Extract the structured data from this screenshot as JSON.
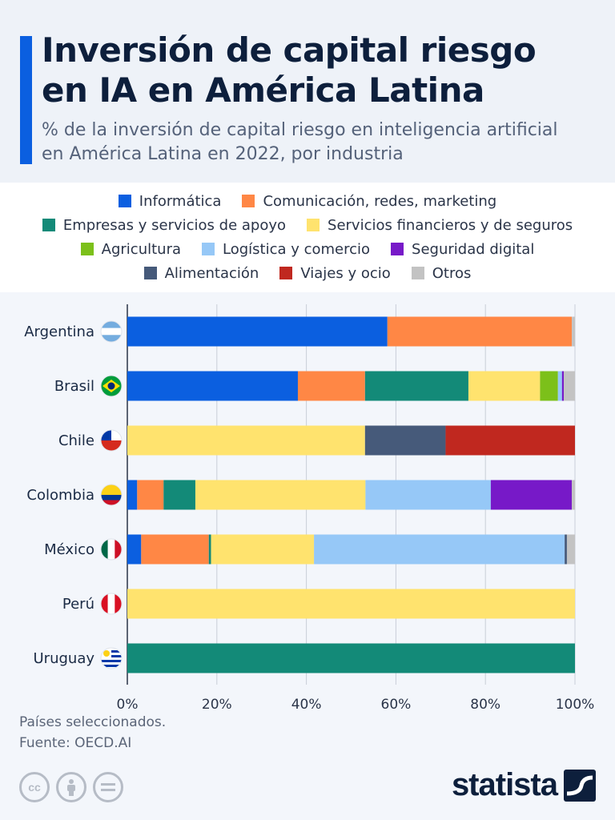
{
  "header": {
    "title_line1": "Inversión de capital riesgo",
    "title_line2": "en IA en América Latina",
    "subtitle_line1": "% de la inversión de capital riesgo en inteligencia artificial",
    "subtitle_line2": "en América Latina en 2022, por industria"
  },
  "chart_data": {
    "type": "bar",
    "orientation": "horizontal",
    "stacked": true,
    "categories": [
      "Argentina",
      "Brasil",
      "Chile",
      "Colombia",
      "México",
      "Perú",
      "Uruguay"
    ],
    "xlim": [
      0,
      100
    ],
    "ticks": [
      "0%",
      "20%",
      "40%",
      "60%",
      "80%",
      "100%"
    ],
    "tick_values": [
      0,
      20,
      40,
      60,
      80,
      100
    ],
    "grid": true,
    "legend_position": "top",
    "series": [
      {
        "name": "Informática",
        "color": "#0b5fe0",
        "values": [
          58.1,
          38.1,
          0,
          2.2,
          3.1,
          0,
          0
        ]
      },
      {
        "name": "Comunicación, redes, marketing",
        "color": "#ff8745",
        "values": [
          41.2,
          15.0,
          0,
          5.9,
          15.1,
          0,
          0
        ]
      },
      {
        "name": "Empresas y servicios de apoyo",
        "color": "#138a78",
        "values": [
          0,
          23.1,
          0,
          7.1,
          0.5,
          0,
          100
        ]
      },
      {
        "name": "Servicios financieros y de seguros",
        "color": "#ffe36e",
        "values": [
          0,
          16.0,
          53.1,
          38.0,
          23.0,
          100,
          0
        ]
      },
      {
        "name": "Agricultura",
        "color": "#7cc01a",
        "values": [
          0,
          4.0,
          0,
          0,
          0,
          0,
          0
        ]
      },
      {
        "name": "Logística y comercio",
        "color": "#96c8f7",
        "values": [
          0,
          0.9,
          0,
          28.0,
          56.0,
          0,
          0
        ]
      },
      {
        "name": "Seguridad digital",
        "color": "#7719c8",
        "values": [
          0,
          0.4,
          0,
          18.1,
          0,
          0,
          0
        ]
      },
      {
        "name": "Alimentación",
        "color": "#465a7a",
        "values": [
          0,
          0,
          18.0,
          0,
          0.5,
          0,
          0
        ]
      },
      {
        "name": "Viajes y ocio",
        "color": "#c0281f",
        "values": [
          0,
          0,
          28.9,
          0,
          0,
          0,
          0
        ]
      },
      {
        "name": "Otros",
        "color": "#c3c3c3",
        "values": [
          0.7,
          2.5,
          0,
          0.7,
          1.8,
          0,
          0
        ]
      }
    ]
  },
  "legend_rows": [
    [
      0,
      1
    ],
    [
      2,
      3
    ],
    [
      4,
      5,
      6
    ],
    [
      7,
      8,
      9
    ]
  ],
  "footer": {
    "note": "Países seleccionados.",
    "source": "Fuente: OECD.AI",
    "cc_icons": [
      "cc",
      "person",
      "equals"
    ],
    "logo": "statista"
  }
}
